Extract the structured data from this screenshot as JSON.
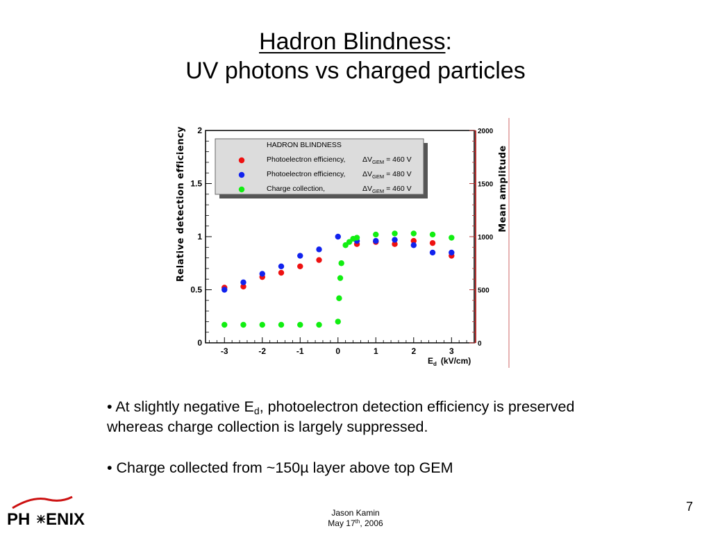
{
  "slide": {
    "title_underlined": "Hadron Blindness",
    "title_colon": ":",
    "subtitle": "UV photons vs charged particles",
    "bullets": [
      {
        "prefix": "• At slightly negative E",
        "sub": "d",
        "suffix": ", photoelectron detection efficiency is preserved whereas charge collection is largely suppressed."
      },
      {
        "text": "• Charge collected from ~150µ layer above top GEM"
      }
    ],
    "footer": {
      "author": "Jason Kamin",
      "date_prefix": "May 17",
      "date_sup": "th",
      "date_suffix": ", 2006"
    },
    "page_number": "7",
    "logo": {
      "left": "PH",
      "right": "ENIX",
      "icon": "phoenix-bird-icon"
    }
  },
  "chart_data": {
    "type": "scatter",
    "ylabel": "Relative detection efficiency",
    "ylabel_right": "Mean amplitude",
    "xlabel_main": "E",
    "xlabel_sub": "d",
    "xlabel_unit": "(kV/cm)",
    "xlim": [
      -3.5,
      3.6
    ],
    "ylim": [
      0,
      2
    ],
    "ylim_right": [
      0,
      2000
    ],
    "x_ticks": [
      "-3",
      "-2",
      "-1",
      "0",
      "1",
      "2",
      "3"
    ],
    "y_ticks": [
      "0",
      "0.5",
      "1",
      "1.5",
      "2"
    ],
    "y_ticks_right": [
      "0",
      "500",
      "1000",
      "1500",
      "2000"
    ],
    "legend": {
      "placement": "top-left",
      "title": "HADRON  BLINDNESS",
      "entries": [
        {
          "name": "Photoelectron efficiency,",
          "dv": "ΔV",
          "dv_sub": "GEM",
          "dv_val": "= 460 V"
        },
        {
          "name": "Photoelectron efficiency,",
          "dv": "ΔV",
          "dv_sub": "GEM",
          "dv_val": "= 480 V"
        },
        {
          "name": "Charge collection,",
          "dv": "ΔV",
          "dv_sub": "GEM",
          "dv_val": "= 460 V"
        }
      ]
    },
    "series": [
      {
        "color": "#ee1111",
        "points": [
          [
            -3,
            0.52
          ],
          [
            -2.5,
            0.53
          ],
          [
            -2,
            0.62
          ],
          [
            -1.5,
            0.66
          ],
          [
            -1,
            0.72
          ],
          [
            -0.5,
            0.78
          ],
          [
            0.5,
            0.93
          ],
          [
            1,
            0.95
          ],
          [
            1.5,
            0.93
          ],
          [
            2,
            0.96
          ],
          [
            2.5,
            0.94
          ],
          [
            3,
            0.82
          ]
        ]
      },
      {
        "color": "#1122ee",
        "points": [
          [
            -3,
            0.5
          ],
          [
            -2.5,
            0.57
          ],
          [
            -2,
            0.65
          ],
          [
            -1.5,
            0.72
          ],
          [
            -1,
            0.82
          ],
          [
            -0.5,
            0.88
          ],
          [
            0,
            1.0
          ],
          [
            0.5,
            0.96
          ],
          [
            1,
            0.96
          ],
          [
            1.5,
            0.97
          ],
          [
            2,
            0.92
          ],
          [
            2.5,
            0.85
          ],
          [
            3,
            0.85
          ]
        ]
      },
      {
        "color": "#11ee11",
        "points": [
          [
            -3,
            0.17
          ],
          [
            -2.5,
            0.17
          ],
          [
            -2,
            0.17
          ],
          [
            -1.5,
            0.17
          ],
          [
            -1,
            0.17
          ],
          [
            -0.5,
            0.17
          ],
          [
            0,
            0.2
          ],
          [
            0.03,
            0.42
          ],
          [
            0.06,
            0.61
          ],
          [
            0.09,
            0.75
          ],
          [
            0.2,
            0.92
          ],
          [
            0.3,
            0.95
          ],
          [
            0.4,
            0.98
          ],
          [
            0.5,
            0.99
          ],
          [
            1,
            1.02
          ],
          [
            1.5,
            1.03
          ],
          [
            2,
            1.03
          ],
          [
            2.5,
            1.02
          ],
          [
            3,
            0.99
          ]
        ]
      }
    ]
  }
}
